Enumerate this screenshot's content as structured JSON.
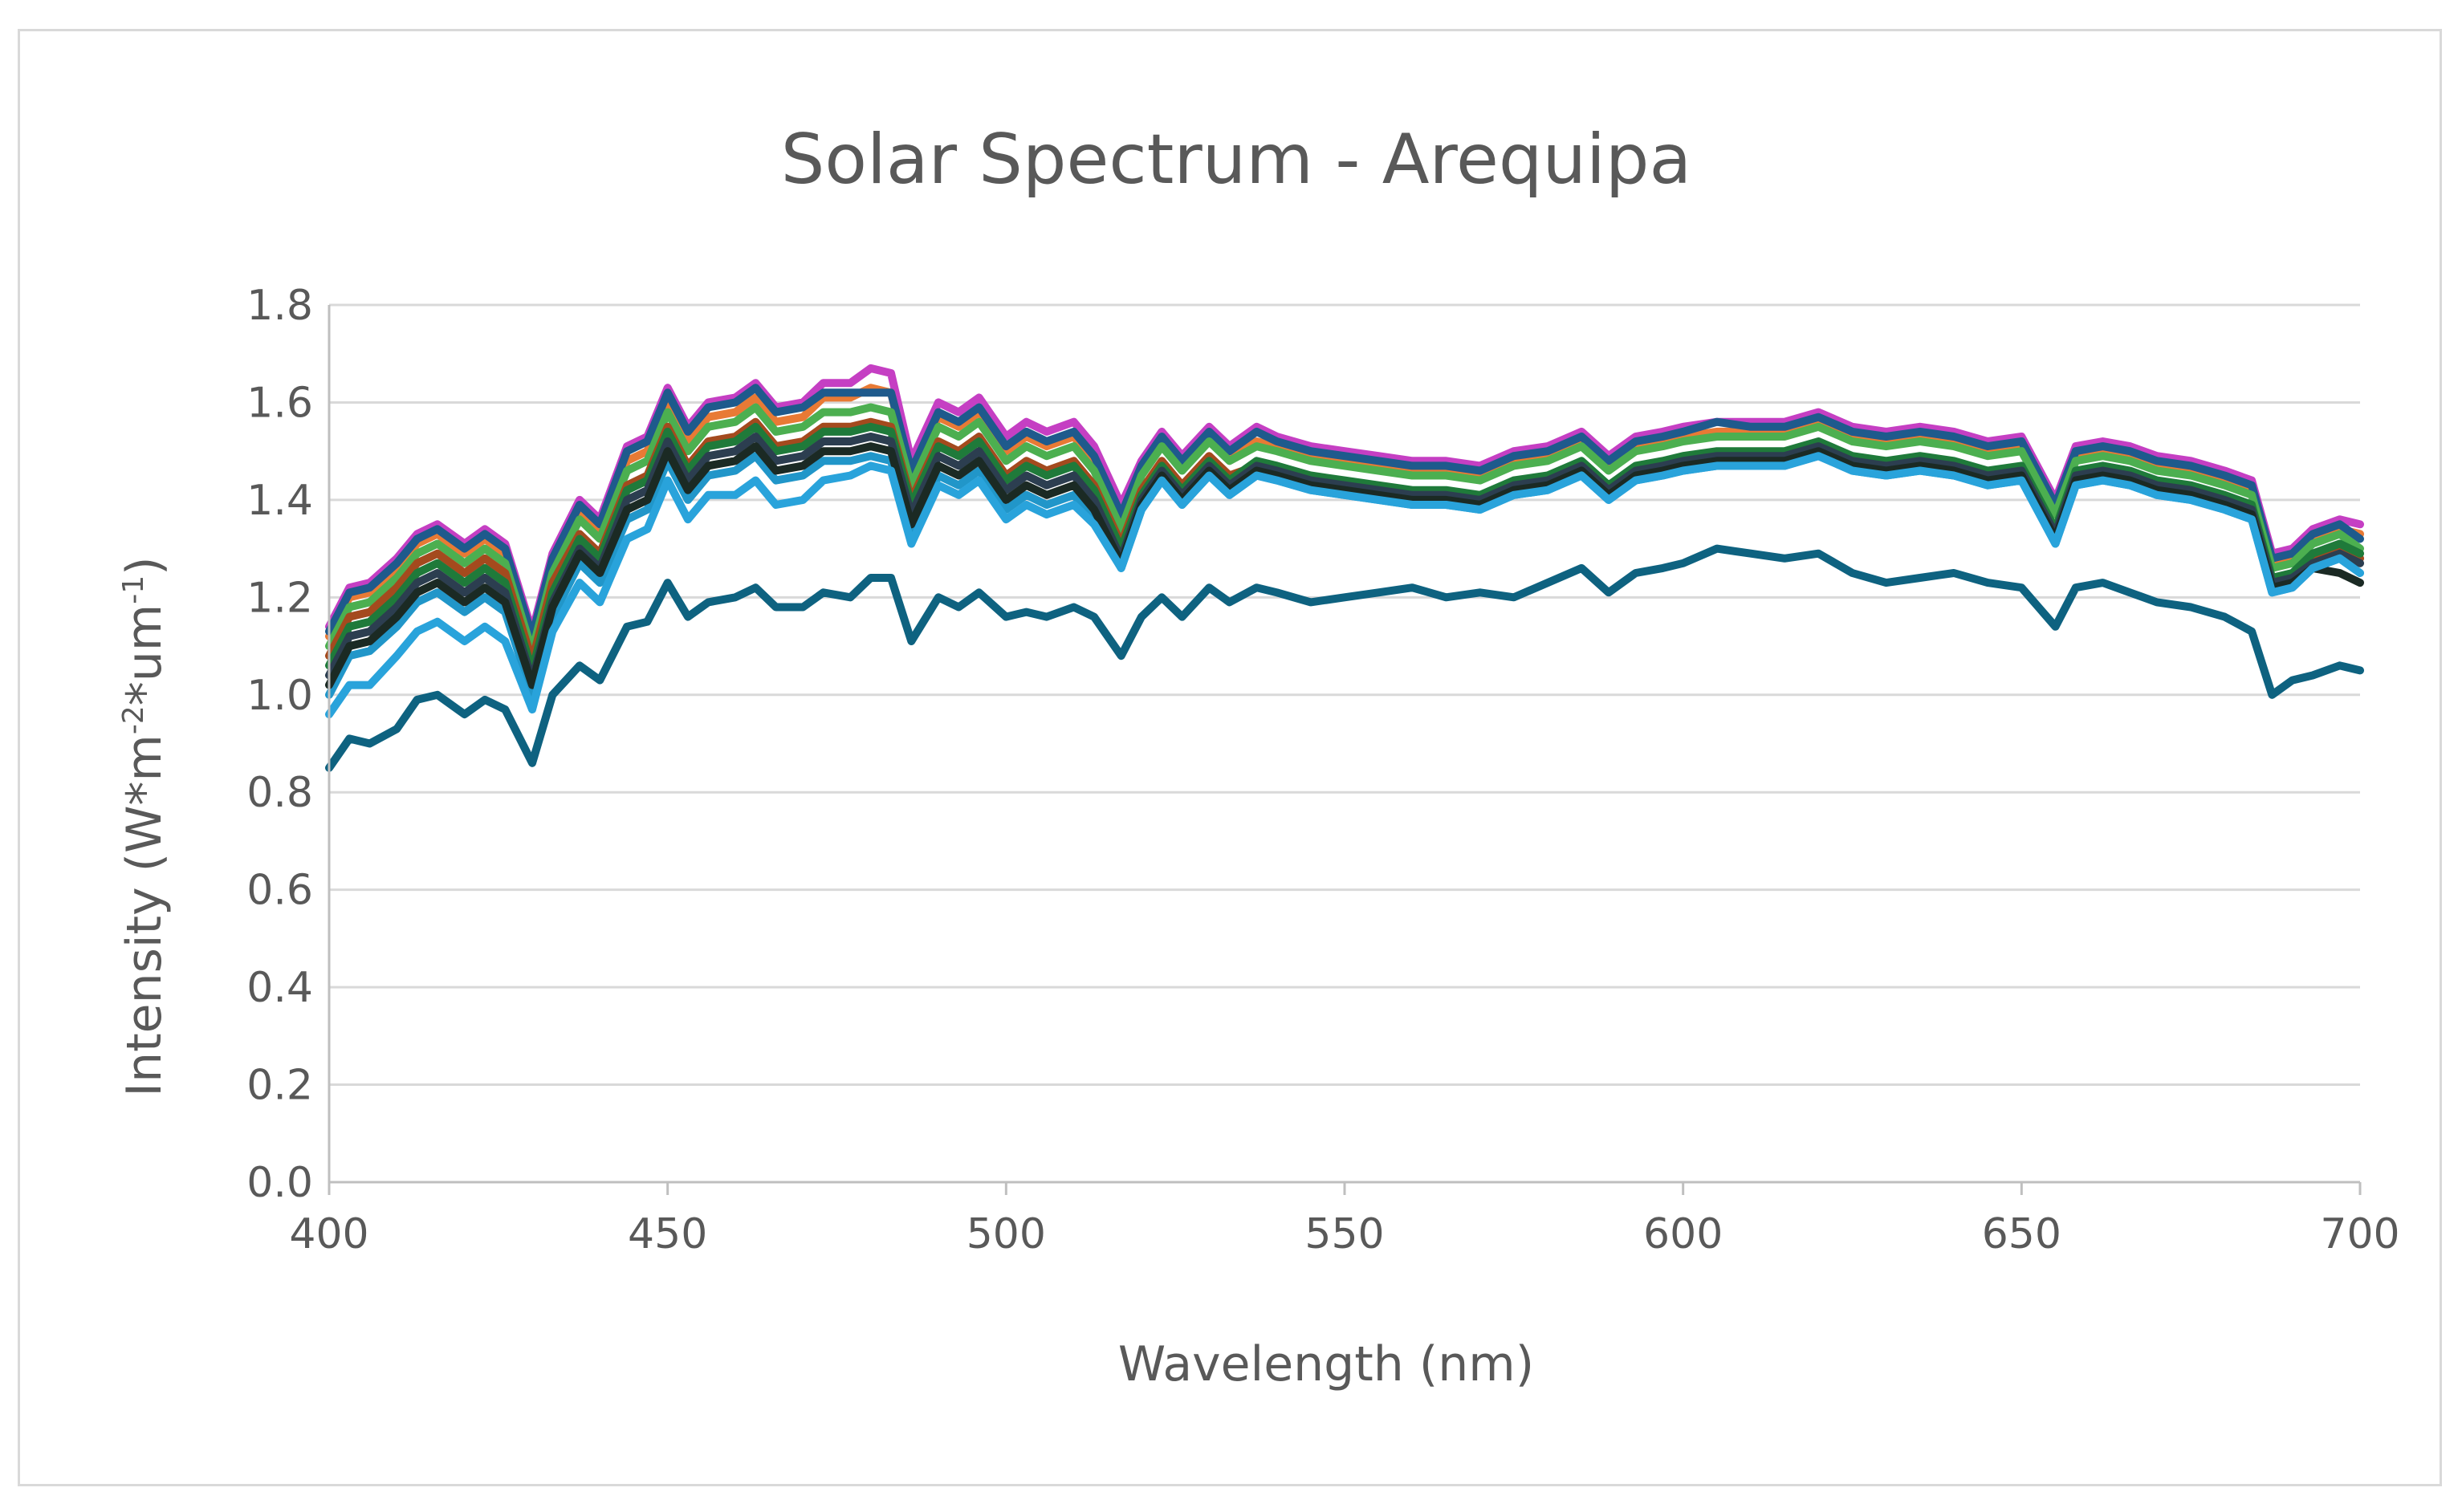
{
  "chart_data": {
    "type": "line",
    "title": "Solar Spectrum - Arequipa",
    "xlabel": "Wavelength (nm)",
    "ylabel": {
      "prefix": "Intensity (W*m",
      "sup1": "-2",
      "middle": "*um",
      "sup2": "-1",
      "suffix": ")"
    },
    "xlim": [
      400,
      700
    ],
    "ylim": [
      0,
      1.8
    ],
    "xticks": [
      "400",
      "450",
      "500",
      "550",
      "600",
      "650",
      "700"
    ],
    "yticks": [
      "0.0",
      "0.2",
      "0.4",
      "0.6",
      "0.8",
      "1.0",
      "1.2",
      "1.4",
      "1.6",
      "1.8"
    ],
    "grid": "horizontal",
    "legend": "none",
    "x": [
      400,
      403,
      406,
      410,
      413,
      416,
      420,
      423,
      426,
      430,
      433,
      437,
      440,
      444,
      447,
      450,
      453,
      456,
      460,
      463,
      466,
      470,
      473,
      477,
      480,
      483,
      486,
      490,
      493,
      496,
      500,
      503,
      506,
      510,
      513,
      517,
      520,
      523,
      526,
      530,
      533,
      537,
      540,
      545,
      550,
      555,
      560,
      565,
      570,
      575,
      580,
      585,
      589,
      593,
      597,
      600,
      605,
      610,
      615,
      620,
      625,
      630,
      635,
      640,
      645,
      650,
      655,
      658,
      662,
      666,
      670,
      675,
      680,
      684,
      687,
      690,
      693,
      697,
      700
    ],
    "series": [
      {
        "color": "#c53fc3",
        "values": [
          1.14,
          1.22,
          1.23,
          1.28,
          1.33,
          1.35,
          1.31,
          1.34,
          1.31,
          1.13,
          1.29,
          1.4,
          1.36,
          1.51,
          1.53,
          1.63,
          1.55,
          1.6,
          1.61,
          1.64,
          1.59,
          1.6,
          1.64,
          1.64,
          1.67,
          1.66,
          1.48,
          1.6,
          1.58,
          1.61,
          1.53,
          1.56,
          1.54,
          1.56,
          1.51,
          1.39,
          1.48,
          1.54,
          1.49,
          1.55,
          1.51,
          1.55,
          1.53,
          1.51,
          1.5,
          1.49,
          1.48,
          1.48,
          1.47,
          1.5,
          1.51,
          1.54,
          1.49,
          1.53,
          1.54,
          1.55,
          1.56,
          1.56,
          1.56,
          1.58,
          1.55,
          1.54,
          1.55,
          1.54,
          1.52,
          1.53,
          1.4,
          1.51,
          1.52,
          1.51,
          1.49,
          1.48,
          1.46,
          1.44,
          1.29,
          1.3,
          1.34,
          1.36,
          1.35
        ]
      },
      {
        "color": "#e87a35",
        "values": [
          1.12,
          1.2,
          1.21,
          1.26,
          1.31,
          1.33,
          1.29,
          1.32,
          1.29,
          1.11,
          1.27,
          1.38,
          1.34,
          1.48,
          1.5,
          1.6,
          1.52,
          1.57,
          1.58,
          1.61,
          1.56,
          1.57,
          1.61,
          1.61,
          1.63,
          1.62,
          1.45,
          1.57,
          1.55,
          1.58,
          1.5,
          1.53,
          1.51,
          1.53,
          1.48,
          1.36,
          1.46,
          1.52,
          1.47,
          1.53,
          1.49,
          1.52,
          1.51,
          1.49,
          1.48,
          1.47,
          1.46,
          1.46,
          1.45,
          1.48,
          1.49,
          1.52,
          1.47,
          1.51,
          1.52,
          1.53,
          1.54,
          1.54,
          1.54,
          1.56,
          1.53,
          1.52,
          1.53,
          1.52,
          1.5,
          1.51,
          1.38,
          1.49,
          1.5,
          1.49,
          1.47,
          1.46,
          1.44,
          1.42,
          1.27,
          1.28,
          1.32,
          1.34,
          1.33
        ]
      },
      {
        "color": "#1e5a8c",
        "values": [
          1.13,
          1.21,
          1.22,
          1.27,
          1.32,
          1.34,
          1.3,
          1.33,
          1.3,
          1.12,
          1.28,
          1.39,
          1.35,
          1.5,
          1.52,
          1.62,
          1.54,
          1.59,
          1.6,
          1.63,
          1.58,
          1.59,
          1.62,
          1.62,
          1.62,
          1.62,
          1.46,
          1.58,
          1.56,
          1.59,
          1.51,
          1.54,
          1.52,
          1.54,
          1.49,
          1.37,
          1.47,
          1.53,
          1.48,
          1.54,
          1.5,
          1.54,
          1.52,
          1.5,
          1.49,
          1.48,
          1.47,
          1.47,
          1.46,
          1.49,
          1.5,
          1.53,
          1.48,
          1.52,
          1.53,
          1.54,
          1.56,
          1.55,
          1.55,
          1.57,
          1.54,
          1.53,
          1.54,
          1.53,
          1.51,
          1.52,
          1.39,
          1.5,
          1.51,
          1.5,
          1.48,
          1.47,
          1.45,
          1.43,
          1.28,
          1.29,
          1.33,
          1.35,
          1.32
        ]
      },
      {
        "color": "#4caf50",
        "values": [
          1.1,
          1.18,
          1.19,
          1.24,
          1.29,
          1.31,
          1.27,
          1.3,
          1.27,
          1.09,
          1.25,
          1.36,
          1.32,
          1.46,
          1.48,
          1.58,
          1.5,
          1.55,
          1.56,
          1.59,
          1.54,
          1.55,
          1.58,
          1.58,
          1.59,
          1.58,
          1.43,
          1.55,
          1.53,
          1.56,
          1.48,
          1.51,
          1.49,
          1.51,
          1.46,
          1.34,
          1.45,
          1.51,
          1.46,
          1.52,
          1.48,
          1.51,
          1.5,
          1.48,
          1.47,
          1.46,
          1.45,
          1.45,
          1.44,
          1.47,
          1.48,
          1.51,
          1.46,
          1.5,
          1.51,
          1.52,
          1.53,
          1.53,
          1.53,
          1.55,
          1.52,
          1.51,
          1.52,
          1.51,
          1.49,
          1.5,
          1.37,
          1.48,
          1.49,
          1.48,
          1.46,
          1.45,
          1.43,
          1.41,
          1.26,
          1.27,
          1.31,
          1.33,
          1.3
        ]
      },
      {
        "color": "#a44a1e",
        "values": [
          1.08,
          1.16,
          1.17,
          1.22,
          1.27,
          1.29,
          1.25,
          1.28,
          1.25,
          1.07,
          1.23,
          1.33,
          1.29,
          1.43,
          1.45,
          1.55,
          1.47,
          1.52,
          1.53,
          1.56,
          1.51,
          1.52,
          1.55,
          1.55,
          1.56,
          1.55,
          1.4,
          1.52,
          1.5,
          1.53,
          1.45,
          1.48,
          1.46,
          1.48,
          1.43,
          1.31,
          1.42,
          1.48,
          1.43,
          1.49,
          1.45,
          1.47,
          1.46,
          1.44,
          1.43,
          1.42,
          1.41,
          1.41,
          1.4,
          1.43,
          1.44,
          1.47,
          1.42,
          1.46,
          1.47,
          1.48,
          1.49,
          1.49,
          1.49,
          1.5,
          1.47,
          1.46,
          1.47,
          1.46,
          1.45,
          1.46,
          1.33,
          1.45,
          1.46,
          1.45,
          1.43,
          1.42,
          1.4,
          1.38,
          1.23,
          1.24,
          1.28,
          1.3,
          1.28
        ]
      },
      {
        "color": "#1f7a3a",
        "values": [
          1.06,
          1.14,
          1.15,
          1.2,
          1.25,
          1.27,
          1.23,
          1.26,
          1.23,
          1.05,
          1.21,
          1.32,
          1.28,
          1.42,
          1.44,
          1.54,
          1.46,
          1.51,
          1.52,
          1.55,
          1.5,
          1.51,
          1.54,
          1.54,
          1.55,
          1.54,
          1.39,
          1.51,
          1.49,
          1.52,
          1.44,
          1.47,
          1.45,
          1.47,
          1.42,
          1.3,
          1.41,
          1.47,
          1.42,
          1.48,
          1.44,
          1.48,
          1.47,
          1.45,
          1.44,
          1.43,
          1.42,
          1.42,
          1.41,
          1.44,
          1.45,
          1.48,
          1.43,
          1.47,
          1.48,
          1.49,
          1.5,
          1.5,
          1.5,
          1.52,
          1.49,
          1.48,
          1.49,
          1.48,
          1.46,
          1.47,
          1.34,
          1.46,
          1.47,
          1.46,
          1.44,
          1.43,
          1.41,
          1.39,
          1.24,
          1.25,
          1.29,
          1.31,
          1.29
        ]
      },
      {
        "color": "#2c3e50",
        "values": [
          1.04,
          1.12,
          1.13,
          1.18,
          1.23,
          1.25,
          1.21,
          1.24,
          1.21,
          1.03,
          1.19,
          1.3,
          1.26,
          1.4,
          1.42,
          1.52,
          1.44,
          1.49,
          1.5,
          1.53,
          1.48,
          1.49,
          1.52,
          1.52,
          1.53,
          1.52,
          1.37,
          1.49,
          1.47,
          1.5,
          1.42,
          1.45,
          1.43,
          1.45,
          1.4,
          1.28,
          1.4,
          1.46,
          1.41,
          1.47,
          1.43,
          1.47,
          1.46,
          1.44,
          1.43,
          1.42,
          1.41,
          1.41,
          1.4,
          1.43,
          1.44,
          1.47,
          1.42,
          1.46,
          1.47,
          1.48,
          1.49,
          1.49,
          1.49,
          1.51,
          1.48,
          1.47,
          1.48,
          1.47,
          1.45,
          1.46,
          1.33,
          1.45,
          1.46,
          1.45,
          1.43,
          1.42,
          1.4,
          1.38,
          1.23,
          1.24,
          1.27,
          1.29,
          1.27
        ]
      },
      {
        "color": "#2196c9",
        "values": [
          1.0,
          1.08,
          1.09,
          1.14,
          1.19,
          1.21,
          1.17,
          1.2,
          1.17,
          1.0,
          1.16,
          1.27,
          1.23,
          1.36,
          1.38,
          1.48,
          1.4,
          1.45,
          1.46,
          1.49,
          1.44,
          1.45,
          1.48,
          1.48,
          1.49,
          1.48,
          1.33,
          1.45,
          1.43,
          1.46,
          1.38,
          1.41,
          1.39,
          1.41,
          1.36,
          1.26,
          1.38,
          1.44,
          1.39,
          1.45,
          1.41,
          1.45,
          1.44,
          1.42,
          1.41,
          1.4,
          1.39,
          1.39,
          1.38,
          1.41,
          1.42,
          1.45,
          1.4,
          1.44,
          1.45,
          1.46,
          1.47,
          1.47,
          1.47,
          1.49,
          1.46,
          1.45,
          1.46,
          1.45,
          1.43,
          1.44,
          1.31,
          1.43,
          1.44,
          1.43,
          1.41,
          1.4,
          1.38,
          1.36,
          1.21,
          1.22,
          1.26,
          1.28,
          1.25
        ]
      },
      {
        "color": "#1b2a24",
        "values": [
          1.02,
          1.1,
          1.11,
          1.16,
          1.21,
          1.23,
          1.19,
          1.22,
          1.19,
          1.02,
          1.18,
          1.29,
          1.25,
          1.38,
          1.4,
          1.5,
          1.42,
          1.47,
          1.48,
          1.51,
          1.46,
          1.47,
          1.5,
          1.5,
          1.51,
          1.5,
          1.35,
          1.47,
          1.45,
          1.48,
          1.4,
          1.43,
          1.41,
          1.43,
          1.38,
          1.27,
          1.39,
          1.45,
          1.4,
          1.46,
          1.42,
          1.46,
          1.45,
          1.43,
          1.42,
          1.41,
          1.4,
          1.4,
          1.39,
          1.42,
          1.43,
          1.46,
          1.41,
          1.45,
          1.46,
          1.47,
          1.48,
          1.48,
          1.48,
          1.5,
          1.47,
          1.46,
          1.47,
          1.46,
          1.44,
          1.45,
          1.32,
          1.44,
          1.45,
          1.44,
          1.42,
          1.41,
          1.39,
          1.37,
          1.22,
          1.23,
          1.26,
          1.25,
          1.23
        ]
      },
      {
        "color": "#29a3db",
        "values": [
          0.96,
          1.02,
          1.02,
          1.08,
          1.13,
          1.15,
          1.11,
          1.14,
          1.11,
          0.97,
          1.13,
          1.23,
          1.19,
          1.32,
          1.34,
          1.44,
          1.36,
          1.41,
          1.41,
          1.44,
          1.39,
          1.4,
          1.44,
          1.45,
          1.47,
          1.46,
          1.31,
          1.43,
          1.41,
          1.44,
          1.36,
          1.39,
          1.37,
          1.39,
          1.35,
          1.26,
          1.38,
          1.44,
          1.39,
          1.45,
          1.41,
          1.45,
          1.44,
          1.42,
          1.41,
          1.4,
          1.39,
          1.39,
          1.38,
          1.41,
          1.42,
          1.45,
          1.4,
          1.44,
          1.45,
          1.46,
          1.47,
          1.47,
          1.47,
          1.49,
          1.46,
          1.45,
          1.46,
          1.45,
          1.43,
          1.44,
          1.31,
          1.43,
          1.44,
          1.43,
          1.41,
          1.4,
          1.38,
          1.36,
          1.21,
          1.22,
          1.26,
          1.28,
          1.25
        ]
      },
      {
        "color": "#0e6280",
        "values": [
          0.85,
          0.91,
          0.9,
          0.93,
          0.99,
          1.0,
          0.96,
          0.99,
          0.97,
          0.86,
          1.0,
          1.06,
          1.03,
          1.14,
          1.15,
          1.23,
          1.16,
          1.19,
          1.2,
          1.22,
          1.18,
          1.18,
          1.21,
          1.2,
          1.24,
          1.24,
          1.11,
          1.2,
          1.18,
          1.21,
          1.16,
          1.17,
          1.16,
          1.18,
          1.16,
          1.08,
          1.16,
          1.2,
          1.16,
          1.22,
          1.19,
          1.22,
          1.21,
          1.19,
          1.2,
          1.21,
          1.22,
          1.2,
          1.21,
          1.2,
          1.23,
          1.26,
          1.21,
          1.25,
          1.26,
          1.27,
          1.3,
          1.29,
          1.28,
          1.29,
          1.25,
          1.23,
          1.24,
          1.25,
          1.23,
          1.22,
          1.14,
          1.22,
          1.23,
          1.21,
          1.19,
          1.18,
          1.16,
          1.13,
          1.0,
          1.03,
          1.04,
          1.06,
          1.05
        ]
      }
    ]
  }
}
